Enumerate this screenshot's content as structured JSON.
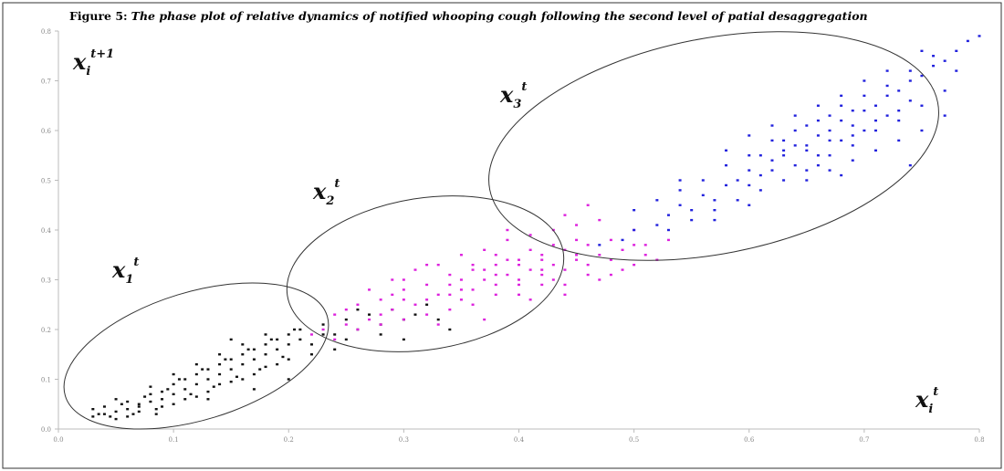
{
  "figure": {
    "label": "Figure 5:",
    "caption": "The phase plot of relative dynamics of notified whooping cough following the second level of  patial desaggregation"
  },
  "chart_data": {
    "type": "scatter",
    "title": "Figure 5: The phase plot of relative dynamics of notified whooping cough following the second level of  patial desaggregation",
    "xlabel_base": "x",
    "xlabel_sub": "i",
    "xlabel_sup": "t",
    "ylabel_base": "x",
    "ylabel_sub": "i",
    "ylabel_sup": "t+1",
    "xlim": [
      0.0,
      0.8
    ],
    "ylim": [
      0.0,
      0.8
    ],
    "x_ticks": [
      "0.0",
      "0.1",
      "0.2",
      "0.3",
      "0.4",
      "0.5",
      "0.6",
      "0.7",
      "0.8"
    ],
    "y_ticks": [
      "0.0",
      "0.1",
      "0.2",
      "0.3",
      "0.4",
      "0.5",
      "0.6",
      "0.7",
      "0.8"
    ],
    "grid": false,
    "legend": "none",
    "cluster_labels": [
      {
        "base": "x",
        "sub": "1",
        "sup": "t"
      },
      {
        "base": "x",
        "sub": "2",
        "sup": "t"
      },
      {
        "base": "x",
        "sub": "3",
        "sup": "t"
      }
    ],
    "series": [
      {
        "color": "#111111",
        "points": [
          [
            0.03,
            0.025
          ],
          [
            0.04,
            0.03
          ],
          [
            0.05,
            0.035
          ],
          [
            0.06,
            0.04
          ],
          [
            0.07,
            0.05
          ],
          [
            0.08,
            0.055
          ],
          [
            0.09,
            0.06
          ],
          [
            0.1,
            0.07
          ],
          [
            0.11,
            0.08
          ],
          [
            0.12,
            0.09
          ],
          [
            0.13,
            0.1
          ],
          [
            0.14,
            0.11
          ],
          [
            0.15,
            0.12
          ],
          [
            0.16,
            0.13
          ],
          [
            0.17,
            0.14
          ],
          [
            0.18,
            0.15
          ],
          [
            0.19,
            0.16
          ],
          [
            0.2,
            0.17
          ],
          [
            0.21,
            0.18
          ],
          [
            0.03,
            0.04
          ],
          [
            0.05,
            0.02
          ],
          [
            0.06,
            0.055
          ],
          [
            0.07,
            0.035
          ],
          [
            0.08,
            0.07
          ],
          [
            0.09,
            0.045
          ],
          [
            0.1,
            0.09
          ],
          [
            0.11,
            0.06
          ],
          [
            0.12,
            0.11
          ],
          [
            0.13,
            0.075
          ],
          [
            0.14,
            0.13
          ],
          [
            0.15,
            0.095
          ],
          [
            0.16,
            0.15
          ],
          [
            0.17,
            0.11
          ],
          [
            0.18,
            0.17
          ],
          [
            0.19,
            0.13
          ],
          [
            0.2,
            0.19
          ],
          [
            0.04,
            0.045
          ],
          [
            0.055,
            0.05
          ],
          [
            0.065,
            0.03
          ],
          [
            0.075,
            0.065
          ],
          [
            0.085,
            0.04
          ],
          [
            0.095,
            0.08
          ],
          [
            0.105,
            0.1
          ],
          [
            0.115,
            0.07
          ],
          [
            0.125,
            0.12
          ],
          [
            0.135,
            0.085
          ],
          [
            0.145,
            0.14
          ],
          [
            0.155,
            0.105
          ],
          [
            0.165,
            0.16
          ],
          [
            0.175,
            0.12
          ],
          [
            0.185,
            0.18
          ],
          [
            0.195,
            0.145
          ],
          [
            0.205,
            0.2
          ],
          [
            0.22,
            0.17
          ],
          [
            0.23,
            0.21
          ],
          [
            0.24,
            0.19
          ],
          [
            0.25,
            0.22
          ],
          [
            0.26,
            0.2
          ],
          [
            0.27,
            0.23
          ],
          [
            0.28,
            0.21
          ],
          [
            0.29,
            0.24
          ],
          [
            0.3,
            0.22
          ],
          [
            0.31,
            0.23
          ],
          [
            0.32,
            0.25
          ],
          [
            0.33,
            0.22
          ],
          [
            0.34,
            0.2
          ],
          [
            0.05,
            0.06
          ],
          [
            0.06,
            0.025
          ],
          [
            0.1,
            0.05
          ],
          [
            0.12,
            0.065
          ],
          [
            0.14,
            0.09
          ],
          [
            0.16,
            0.1
          ],
          [
            0.18,
            0.125
          ],
          [
            0.2,
            0.14
          ],
          [
            0.22,
            0.15
          ],
          [
            0.24,
            0.16
          ],
          [
            0.035,
            0.03
          ],
          [
            0.045,
            0.025
          ],
          [
            0.07,
            0.045
          ],
          [
            0.09,
            0.075
          ],
          [
            0.11,
            0.1
          ],
          [
            0.13,
            0.12
          ],
          [
            0.15,
            0.14
          ],
          [
            0.17,
            0.16
          ],
          [
            0.19,
            0.18
          ],
          [
            0.21,
            0.2
          ],
          [
            0.23,
            0.19
          ],
          [
            0.25,
            0.18
          ],
          [
            0.08,
            0.085
          ],
          [
            0.1,
            0.11
          ],
          [
            0.12,
            0.13
          ],
          [
            0.14,
            0.15
          ],
          [
            0.16,
            0.17
          ],
          [
            0.18,
            0.19
          ],
          [
            0.085,
            0.03
          ],
          [
            0.13,
            0.06
          ],
          [
            0.17,
            0.08
          ],
          [
            0.2,
            0.1
          ],
          [
            0.15,
            0.18
          ],
          [
            0.26,
            0.24
          ],
          [
            0.28,
            0.19
          ],
          [
            0.3,
            0.18
          ]
        ]
      },
      {
        "color": "#dd22dd",
        "points": [
          [
            0.22,
            0.19
          ],
          [
            0.23,
            0.2
          ],
          [
            0.24,
            0.23
          ],
          [
            0.25,
            0.21
          ],
          [
            0.26,
            0.25
          ],
          [
            0.27,
            0.22
          ],
          [
            0.28,
            0.26
          ],
          [
            0.29,
            0.24
          ],
          [
            0.3,
            0.28
          ],
          [
            0.31,
            0.25
          ],
          [
            0.32,
            0.29
          ],
          [
            0.33,
            0.27
          ],
          [
            0.34,
            0.31
          ],
          [
            0.35,
            0.28
          ],
          [
            0.36,
            0.32
          ],
          [
            0.37,
            0.3
          ],
          [
            0.38,
            0.33
          ],
          [
            0.39,
            0.31
          ],
          [
            0.4,
            0.34
          ],
          [
            0.41,
            0.32
          ],
          [
            0.42,
            0.35
          ],
          [
            0.43,
            0.33
          ],
          [
            0.44,
            0.36
          ],
          [
            0.45,
            0.34
          ],
          [
            0.46,
            0.37
          ],
          [
            0.47,
            0.35
          ],
          [
            0.48,
            0.38
          ],
          [
            0.49,
            0.36
          ],
          [
            0.5,
            0.37
          ],
          [
            0.51,
            0.35
          ],
          [
            0.52,
            0.34
          ],
          [
            0.53,
            0.38
          ],
          [
            0.26,
            0.2
          ],
          [
            0.28,
            0.23
          ],
          [
            0.3,
            0.22
          ],
          [
            0.32,
            0.26
          ],
          [
            0.34,
            0.24
          ],
          [
            0.36,
            0.28
          ],
          [
            0.38,
            0.27
          ],
          [
            0.4,
            0.3
          ],
          [
            0.42,
            0.29
          ],
          [
            0.44,
            0.32
          ],
          [
            0.46,
            0.31
          ],
          [
            0.48,
            0.34
          ],
          [
            0.5,
            0.33
          ],
          [
            0.27,
            0.28
          ],
          [
            0.29,
            0.3
          ],
          [
            0.31,
            0.32
          ],
          [
            0.33,
            0.33
          ],
          [
            0.35,
            0.35
          ],
          [
            0.37,
            0.36
          ],
          [
            0.39,
            0.38
          ],
          [
            0.41,
            0.39
          ],
          [
            0.43,
            0.4
          ],
          [
            0.45,
            0.41
          ],
          [
            0.47,
            0.42
          ],
          [
            0.3,
            0.26
          ],
          [
            0.32,
            0.23
          ],
          [
            0.34,
            0.27
          ],
          [
            0.36,
            0.25
          ],
          [
            0.38,
            0.29
          ],
          [
            0.4,
            0.27
          ],
          [
            0.42,
            0.31
          ],
          [
            0.44,
            0.29
          ],
          [
            0.46,
            0.33
          ],
          [
            0.48,
            0.31
          ],
          [
            0.35,
            0.3
          ],
          [
            0.37,
            0.32
          ],
          [
            0.39,
            0.34
          ],
          [
            0.41,
            0.36
          ],
          [
            0.43,
            0.37
          ],
          [
            0.45,
            0.38
          ],
          [
            0.38,
            0.35
          ],
          [
            0.4,
            0.33
          ],
          [
            0.42,
            0.34
          ],
          [
            0.36,
            0.33
          ],
          [
            0.34,
            0.29
          ],
          [
            0.3,
            0.3
          ],
          [
            0.25,
            0.24
          ],
          [
            0.24,
            0.18
          ],
          [
            0.28,
            0.21
          ],
          [
            0.33,
            0.21
          ],
          [
            0.37,
            0.22
          ],
          [
            0.41,
            0.26
          ],
          [
            0.44,
            0.27
          ],
          [
            0.47,
            0.3
          ],
          [
            0.49,
            0.32
          ],
          [
            0.51,
            0.37
          ],
          [
            0.5,
            0.4
          ],
          [
            0.46,
            0.45
          ],
          [
            0.44,
            0.43
          ],
          [
            0.39,
            0.4
          ],
          [
            0.32,
            0.33
          ],
          [
            0.29,
            0.27
          ],
          [
            0.35,
            0.26
          ],
          [
            0.4,
            0.29
          ],
          [
            0.43,
            0.3
          ],
          [
            0.45,
            0.35
          ],
          [
            0.42,
            0.32
          ],
          [
            0.38,
            0.31
          ]
        ]
      },
      {
        "color": "#2222dd",
        "points": [
          [
            0.47,
            0.37
          ],
          [
            0.49,
            0.38
          ],
          [
            0.5,
            0.4
          ],
          [
            0.52,
            0.41
          ],
          [
            0.53,
            0.43
          ],
          [
            0.54,
            0.45
          ],
          [
            0.55,
            0.44
          ],
          [
            0.56,
            0.47
          ],
          [
            0.57,
            0.46
          ],
          [
            0.58,
            0.49
          ],
          [
            0.59,
            0.5
          ],
          [
            0.6,
            0.52
          ],
          [
            0.61,
            0.51
          ],
          [
            0.62,
            0.54
          ],
          [
            0.63,
            0.55
          ],
          [
            0.64,
            0.57
          ],
          [
            0.65,
            0.56
          ],
          [
            0.66,
            0.59
          ],
          [
            0.67,
            0.6
          ],
          [
            0.68,
            0.62
          ],
          [
            0.69,
            0.61
          ],
          [
            0.7,
            0.64
          ],
          [
            0.71,
            0.65
          ],
          [
            0.72,
            0.67
          ],
          [
            0.73,
            0.68
          ],
          [
            0.74,
            0.7
          ],
          [
            0.75,
            0.71
          ],
          [
            0.76,
            0.73
          ],
          [
            0.77,
            0.74
          ],
          [
            0.78,
            0.76
          ],
          [
            0.79,
            0.78
          ],
          [
            0.8,
            0.79
          ],
          [
            0.52,
            0.46
          ],
          [
            0.54,
            0.48
          ],
          [
            0.56,
            0.5
          ],
          [
            0.58,
            0.53
          ],
          [
            0.6,
            0.55
          ],
          [
            0.62,
            0.58
          ],
          [
            0.64,
            0.6
          ],
          [
            0.66,
            0.62
          ],
          [
            0.68,
            0.65
          ],
          [
            0.7,
            0.67
          ],
          [
            0.72,
            0.69
          ],
          [
            0.74,
            0.72
          ],
          [
            0.76,
            0.75
          ],
          [
            0.55,
            0.42
          ],
          [
            0.57,
            0.44
          ],
          [
            0.59,
            0.46
          ],
          [
            0.61,
            0.48
          ],
          [
            0.63,
            0.5
          ],
          [
            0.65,
            0.52
          ],
          [
            0.67,
            0.55
          ],
          [
            0.69,
            0.57
          ],
          [
            0.71,
            0.6
          ],
          [
            0.73,
            0.62
          ],
          [
            0.75,
            0.65
          ],
          [
            0.77,
            0.68
          ],
          [
            0.6,
            0.49
          ],
          [
            0.62,
            0.52
          ],
          [
            0.64,
            0.53
          ],
          [
            0.66,
            0.55
          ],
          [
            0.68,
            0.58
          ],
          [
            0.7,
            0.6
          ],
          [
            0.72,
            0.63
          ],
          [
            0.74,
            0.66
          ],
          [
            0.63,
            0.58
          ],
          [
            0.65,
            0.61
          ],
          [
            0.67,
            0.63
          ],
          [
            0.69,
            0.64
          ],
          [
            0.71,
            0.62
          ],
          [
            0.73,
            0.64
          ],
          [
            0.58,
            0.56
          ],
          [
            0.6,
            0.59
          ],
          [
            0.62,
            0.61
          ],
          [
            0.64,
            0.63
          ],
          [
            0.66,
            0.65
          ],
          [
            0.68,
            0.67
          ],
          [
            0.7,
            0.7
          ],
          [
            0.72,
            0.72
          ],
          [
            0.65,
            0.5
          ],
          [
            0.67,
            0.52
          ],
          [
            0.69,
            0.54
          ],
          [
            0.71,
            0.56
          ],
          [
            0.73,
            0.58
          ],
          [
            0.75,
            0.6
          ],
          [
            0.77,
            0.63
          ],
          [
            0.61,
            0.55
          ],
          [
            0.63,
            0.56
          ],
          [
            0.65,
            0.57
          ],
          [
            0.67,
            0.58
          ],
          [
            0.69,
            0.59
          ],
          [
            0.5,
            0.44
          ],
          [
            0.53,
            0.4
          ],
          [
            0.57,
            0.42
          ],
          [
            0.6,
            0.45
          ],
          [
            0.54,
            0.5
          ],
          [
            0.75,
            0.76
          ],
          [
            0.78,
            0.72
          ],
          [
            0.74,
            0.53
          ],
          [
            0.68,
            0.51
          ],
          [
            0.66,
            0.53
          ]
        ]
      }
    ]
  }
}
